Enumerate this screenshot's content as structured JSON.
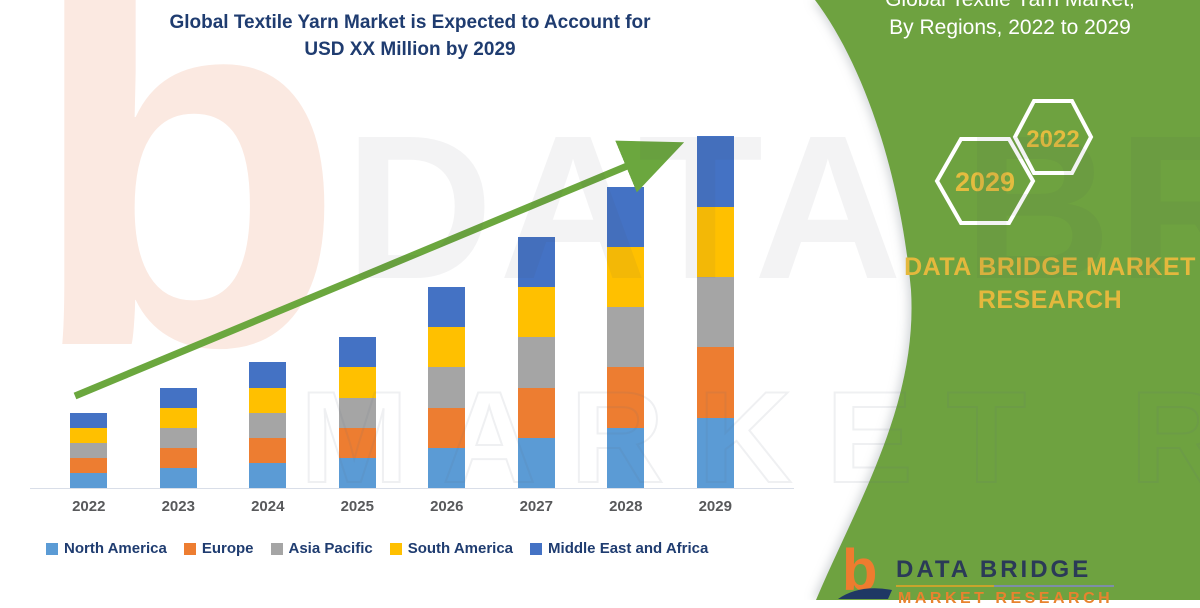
{
  "title": {
    "line1": "Global Textile Yarn Market is Expected to Account for",
    "line2": "USD XX Million by 2029"
  },
  "chart_data": {
    "type": "bar",
    "stacked": true,
    "title": "Global Textile Yarn Market is Expected to Account for USD XX Million by 2029",
    "categories": [
      "2022",
      "2023",
      "2024",
      "2025",
      "2026",
      "2027",
      "2028",
      "2029"
    ],
    "series": [
      {
        "name": "North America",
        "color": "#5B9BD5",
        "values": [
          15,
          20,
          25,
          30,
          40,
          50,
          60,
          70
        ]
      },
      {
        "name": "Europe",
        "color": "#ED7D31",
        "values": [
          15,
          20,
          25,
          30,
          40,
          50,
          60,
          70
        ]
      },
      {
        "name": "Asia Pacific",
        "color": "#A5A5A5",
        "values": [
          15,
          20,
          25,
          30,
          40,
          50,
          60,
          70
        ]
      },
      {
        "name": "South America",
        "color": "#FFC000",
        "values": [
          15,
          20,
          25,
          30,
          40,
          50,
          60,
          70
        ]
      },
      {
        "name": "Middle East and Africa",
        "color": "#4472C4",
        "values": [
          15,
          20,
          25,
          30,
          40,
          50,
          60,
          70
        ]
      }
    ],
    "stack_totals": [
      75,
      100,
      125,
      150,
      200,
      250,
      300,
      350
    ],
    "value_axis_visible": false,
    "value_units": "relative (axis not labeled, values shown as XX)",
    "grid": false,
    "legend_position": "bottom",
    "trend_arrow": {
      "present": true,
      "color": "#6BA73E"
    }
  },
  "side_panel": {
    "title_line1": "Global Textile Yarn Market,",
    "title_line2": "By Regions, 2022 to 2029",
    "hexagons": [
      {
        "year": "2029"
      },
      {
        "year": "2022"
      }
    ],
    "brand_text": "DATA BRIDGE MARKET RESEARCH",
    "panel_color": "#6EA23F",
    "accent_gold": "#E4B83D"
  },
  "footer_logo": {
    "b_glyph": "b",
    "name": "DATA BRIDGE",
    "subname": "MARKET RESEARCH"
  },
  "watermarks": {
    "b_glyph": "b",
    "row1": "DATA BRIDGE",
    "row2": "MARKET RESEARCH"
  },
  "colors": {
    "title_text": "#1F3C70",
    "axis_label": "#58595B",
    "axis_line": "#D9DEE8"
  }
}
